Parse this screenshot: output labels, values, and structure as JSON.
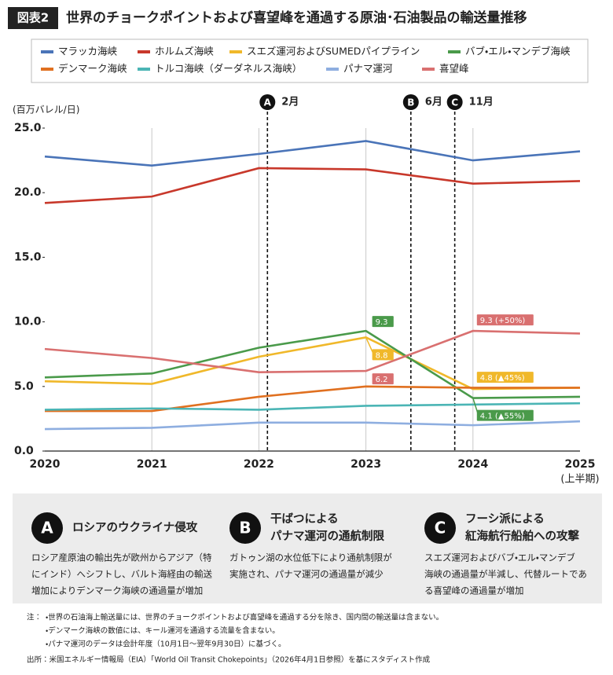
{
  "header": {
    "label": "図表2",
    "title": "世界のチョークポイントおよび喜望峰を通過する原油･石油製品の輸送量推移"
  },
  "chart_data": {
    "type": "line",
    "y_label": "(百万バレル/日)",
    "x": [
      2020,
      2021,
      2022,
      2023,
      2024,
      2025
    ],
    "xlim": [
      2020,
      2025
    ],
    "xticks": [
      2020,
      2021,
      2022,
      2023,
      2024,
      2025
    ],
    "x_note": "(上半期)",
    "ylim": [
      0,
      25
    ],
    "yticks": [
      {
        "value": 0,
        "label": "0.0"
      },
      {
        "value": 5,
        "label": "5.0"
      },
      {
        "value": 10,
        "label": "10.0"
      },
      {
        "value": 15,
        "label": "15.0"
      },
      {
        "value": 20,
        "label": "20.0"
      },
      {
        "value": 25,
        "label": "25.0"
      }
    ],
    "grid": "x",
    "series": [
      {
        "name": "マラッカ海峡",
        "color": "#4a74b8",
        "values": [
          22.8,
          22.1,
          23.0,
          24.0,
          22.5,
          23.2
        ]
      },
      {
        "name": "ホルムズ海峡",
        "color": "#c8382b",
        "values": [
          19.2,
          19.7,
          21.9,
          21.8,
          20.7,
          20.9
        ]
      },
      {
        "name": "スエズ運河およびSUMEDパイプライン",
        "color": "#f0b82a",
        "values": [
          5.4,
          5.2,
          7.3,
          8.8,
          4.8,
          4.9
        ],
        "value_labels": [
          null,
          null,
          null,
          "8.8",
          "4.8 (▲45%)",
          null
        ]
      },
      {
        "name": "バブ・エル・マンデブ海峡",
        "color": "#4a9a4a",
        "values": [
          5.7,
          6.0,
          8.0,
          9.3,
          4.1,
          4.2
        ],
        "value_labels": [
          null,
          null,
          null,
          "9.3",
          "4.1 (▲55%)",
          null
        ]
      },
      {
        "name": "デンマーク海峡",
        "color": "#e07020",
        "values": [
          3.1,
          3.1,
          4.2,
          5.0,
          4.9,
          4.9
        ]
      },
      {
        "name": "トルコ海峡（ダーダネルス海峡）",
        "color": "#4bb5b5",
        "values": [
          3.2,
          3.3,
          3.2,
          3.5,
          3.6,
          3.7
        ]
      },
      {
        "name": "パナマ運河",
        "color": "#8eaee0",
        "values": [
          1.7,
          1.8,
          2.2,
          2.2,
          2.0,
          2.3
        ]
      },
      {
        "name": "喜望峰",
        "color": "#d97070",
        "values": [
          7.9,
          7.2,
          6.1,
          6.2,
          9.3,
          9.1
        ],
        "value_labels": [
          null,
          null,
          null,
          "6.2",
          "9.3 (+50%)",
          null
        ]
      }
    ],
    "events": [
      {
        "letter": "A",
        "label": "2月",
        "x": 2022.08
      },
      {
        "letter": "B",
        "label": "6月",
        "x": 2023.42
      },
      {
        "letter": "C",
        "label": "11月",
        "x": 2023.83
      }
    ]
  },
  "panels": [
    {
      "letter": "A",
      "title": [
        "ロシアのウクライナ侵攻"
      ],
      "body": [
        "ロシア産原油の輸出先が欧州からアジア（特",
        "にインド）へシフトし、バルト海経由の輸送",
        "増加によりデンマーク海峡の通過量が増加"
      ]
    },
    {
      "letter": "B",
      "title": [
        "干ばつによる",
        "パナマ運河の通航制限"
      ],
      "body": [
        "ガトゥン湖の水位低下により通航制限が",
        "実施され、パナマ運河の通過量が減少"
      ]
    },
    {
      "letter": "C",
      "title": [
        "フーシ派による",
        "紅海航行船舶への攻撃"
      ],
      "body": [
        "スエズ運河およびバブ・エル・マンデブ",
        "海峡の通過量が半減し、代替ルートであ",
        "る喜望峰の通過量が増加"
      ]
    }
  ],
  "notes": {
    "label": "注：",
    "items": [
      "・世界の石油海上輸送量には、世界のチョークポイントおよび喜望峰を通過する分を除き、国内間の輸送量は含まない。",
      "・デンマーク海峡の数値には、キール運河を通過する流量を含まない。",
      "・パナマ運河のデータは会計年度（10月1日～翌年9月30日）に基づく。"
    ],
    "source": "出所：米国エネルギー情報局（EIA）「World Oil Transit Chokepoints」（2026年4月1日参照）を基にスタディスト作成"
  }
}
